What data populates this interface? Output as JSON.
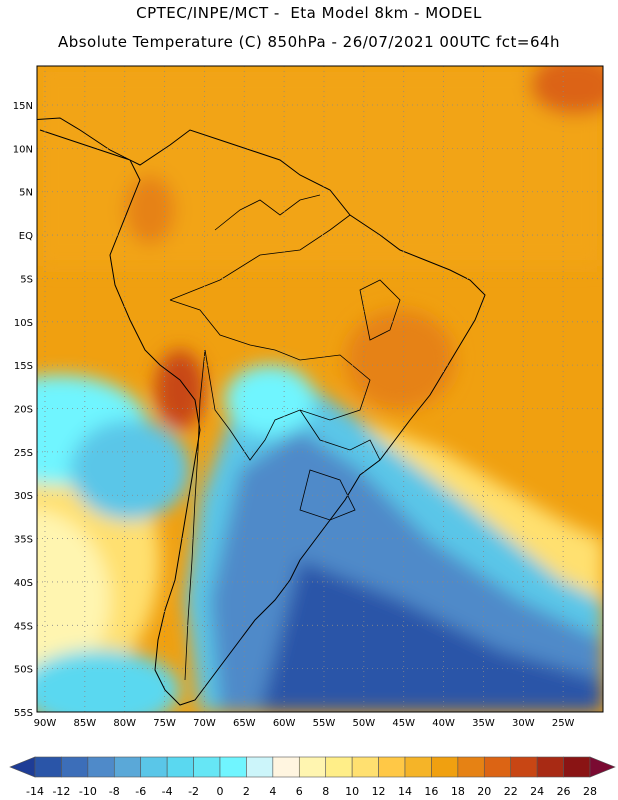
{
  "header": {
    "line1": "CPTEC/INPE/MCT -  Eta Model 8km - MODEL",
    "line2": "Absolute Temperature (C) 850hPa - 26/07/2021 00UTC fct=64h"
  },
  "map": {
    "lat_labels": [
      "15N",
      "10N",
      "5N",
      "EQ",
      "5S",
      "10S",
      "15S",
      "20S",
      "25S",
      "30S",
      "35S",
      "40S",
      "45S",
      "50S",
      "55S"
    ],
    "lon_labels": [
      "90W",
      "85W",
      "80W",
      "75W",
      "70W",
      "65W",
      "60W",
      "55W",
      "50W",
      "45W",
      "40W",
      "35W",
      "30W",
      "25W"
    ],
    "region": "South America",
    "field": "850hPa temperature"
  },
  "colorbar": {
    "ticks": [
      "-14",
      "-12",
      "-10",
      "-8",
      "-6",
      "-4",
      "-2",
      "0",
      "2",
      "4",
      "6",
      "8",
      "10",
      "12",
      "14",
      "16",
      "18",
      "20",
      "22",
      "24",
      "26",
      "28"
    ],
    "colors": [
      "#1e3c96",
      "#2a55a8",
      "#3c6eb9",
      "#4f8ac9",
      "#5aa8d8",
      "#5ac6e8",
      "#5ad8f0",
      "#66e6f5",
      "#70f5ff",
      "#ccf5fa",
      "#fff5e0",
      "#fff5b0",
      "#ffee88",
      "#ffe070",
      "#ffc846",
      "#f5b428",
      "#f0a010",
      "#e68214",
      "#dc6414",
      "#c84614",
      "#a82a14",
      "#8a1414",
      "#7a0a32"
    ]
  }
}
